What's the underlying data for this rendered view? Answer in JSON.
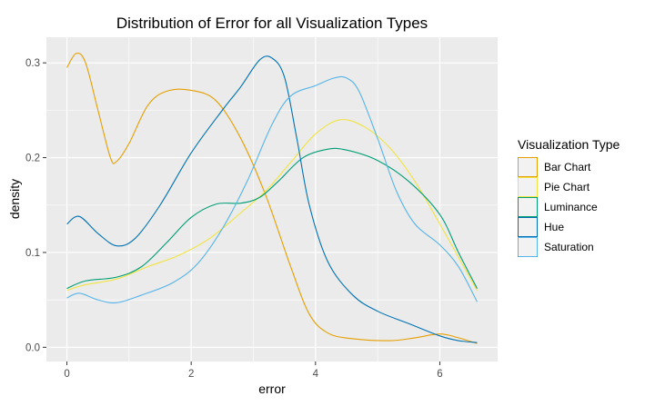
{
  "chart_data": {
    "type": "line",
    "title": "Distribution of Error for all Visualization Types",
    "xlabel": "error",
    "ylabel": "density",
    "xlim": [
      -0.33,
      6.93
    ],
    "ylim": [
      -0.015,
      0.327
    ],
    "x_ticks": [
      0,
      2,
      4,
      6
    ],
    "x_tick_labels": [
      "0",
      "2",
      "4",
      "6"
    ],
    "y_ticks": [
      0.0,
      0.1,
      0.2,
      0.3
    ],
    "y_tick_labels": [
      "0.0",
      "0.1",
      "0.2",
      "0.3"
    ],
    "grid": true,
    "legend": {
      "title": "Visualization Type",
      "position": "right"
    },
    "series": [
      {
        "name": "Bar Chart",
        "color": "#E69F00",
        "points": [
          [
            0,
            0.295
          ],
          [
            0.15,
            0.31
          ],
          [
            0.3,
            0.3
          ],
          [
            0.5,
            0.25
          ],
          [
            0.7,
            0.2
          ],
          [
            0.8,
            0.196
          ],
          [
            1.0,
            0.215
          ],
          [
            1.3,
            0.255
          ],
          [
            1.6,
            0.27
          ],
          [
            2.0,
            0.271
          ],
          [
            2.4,
            0.26
          ],
          [
            2.8,
            0.22
          ],
          [
            3.2,
            0.16
          ],
          [
            3.6,
            0.085
          ],
          [
            3.9,
            0.035
          ],
          [
            4.2,
            0.015
          ],
          [
            4.6,
            0.009
          ],
          [
            5.2,
            0.007
          ],
          [
            5.6,
            0.01
          ],
          [
            6.0,
            0.014
          ],
          [
            6.3,
            0.01
          ],
          [
            6.6,
            0.004
          ]
        ]
      },
      {
        "name": "Pie Chart",
        "color": "#F0E442",
        "points": [
          [
            0,
            0.06
          ],
          [
            0.3,
            0.066
          ],
          [
            0.8,
            0.072
          ],
          [
            1.3,
            0.085
          ],
          [
            1.8,
            0.097
          ],
          [
            2.3,
            0.115
          ],
          [
            2.8,
            0.142
          ],
          [
            3.2,
            0.165
          ],
          [
            3.6,
            0.195
          ],
          [
            4.0,
            0.225
          ],
          [
            4.4,
            0.24
          ],
          [
            4.8,
            0.232
          ],
          [
            5.2,
            0.21
          ],
          [
            5.6,
            0.175
          ],
          [
            6.0,
            0.13
          ],
          [
            6.3,
            0.095
          ],
          [
            6.6,
            0.06
          ]
        ]
      },
      {
        "name": "Luminance",
        "color": "#009E73",
        "points": [
          [
            0,
            0.062
          ],
          [
            0.3,
            0.07
          ],
          [
            0.8,
            0.074
          ],
          [
            1.2,
            0.085
          ],
          [
            1.6,
            0.11
          ],
          [
            2.0,
            0.137
          ],
          [
            2.4,
            0.151
          ],
          [
            2.8,
            0.152
          ],
          [
            3.1,
            0.158
          ],
          [
            3.4,
            0.175
          ],
          [
            3.8,
            0.2
          ],
          [
            4.2,
            0.209
          ],
          [
            4.5,
            0.208
          ],
          [
            5.0,
            0.197
          ],
          [
            5.5,
            0.175
          ],
          [
            6.0,
            0.14
          ],
          [
            6.3,
            0.1
          ],
          [
            6.6,
            0.062
          ]
        ]
      },
      {
        "name": "Hue",
        "color": "#0072B2",
        "points": [
          [
            0,
            0.13
          ],
          [
            0.2,
            0.138
          ],
          [
            0.5,
            0.12
          ],
          [
            0.8,
            0.107
          ],
          [
            1.1,
            0.115
          ],
          [
            1.5,
            0.15
          ],
          [
            2.0,
            0.205
          ],
          [
            2.5,
            0.25
          ],
          [
            2.8,
            0.275
          ],
          [
            3.1,
            0.303
          ],
          [
            3.3,
            0.305
          ],
          [
            3.5,
            0.285
          ],
          [
            3.7,
            0.22
          ],
          [
            3.9,
            0.15
          ],
          [
            4.2,
            0.09
          ],
          [
            4.6,
            0.055
          ],
          [
            5.0,
            0.038
          ],
          [
            5.5,
            0.025
          ],
          [
            6.0,
            0.012
          ],
          [
            6.3,
            0.007
          ],
          [
            6.6,
            0.005
          ]
        ]
      },
      {
        "name": "Saturation",
        "color": "#56B4E9",
        "points": [
          [
            0,
            0.052
          ],
          [
            0.2,
            0.057
          ],
          [
            0.5,
            0.05
          ],
          [
            0.8,
            0.047
          ],
          [
            1.2,
            0.055
          ],
          [
            1.7,
            0.068
          ],
          [
            2.1,
            0.088
          ],
          [
            2.5,
            0.125
          ],
          [
            2.9,
            0.175
          ],
          [
            3.3,
            0.235
          ],
          [
            3.6,
            0.265
          ],
          [
            4.0,
            0.276
          ],
          [
            4.3,
            0.284
          ],
          [
            4.5,
            0.284
          ],
          [
            4.7,
            0.27
          ],
          [
            5.0,
            0.22
          ],
          [
            5.3,
            0.165
          ],
          [
            5.6,
            0.13
          ],
          [
            6.0,
            0.108
          ],
          [
            6.3,
            0.085
          ],
          [
            6.6,
            0.048
          ]
        ]
      }
    ]
  }
}
